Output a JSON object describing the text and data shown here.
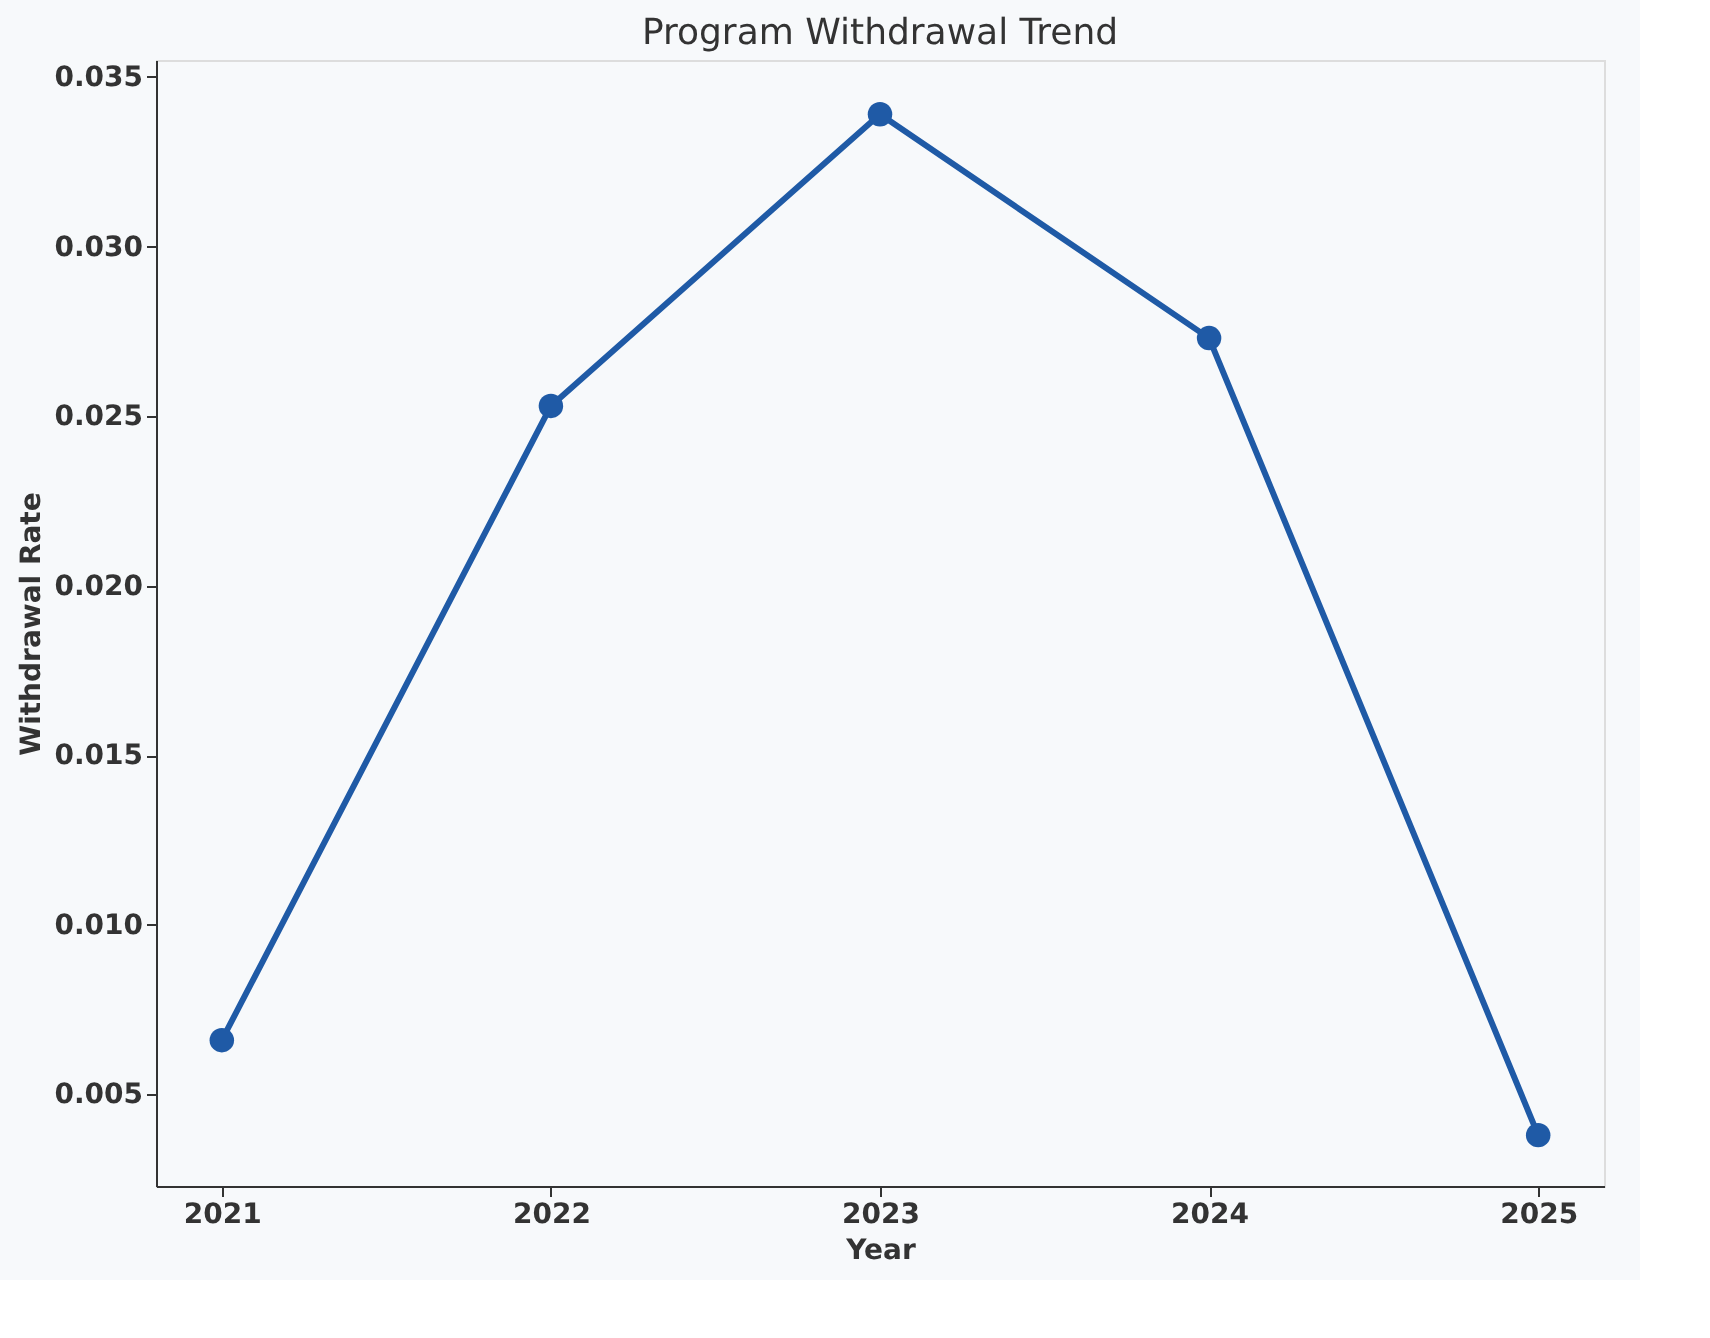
{
  "chart_data": {
    "type": "line",
    "title": "Program Withdrawal Trend",
    "xlabel": "Year",
    "ylabel": "Withdrawal Rate",
    "x": [
      2021,
      2022,
      2023,
      2024,
      2025
    ],
    "series": [
      {
        "color": "#1f5aa6",
        "values": [
          0.0066,
          0.0253,
          0.0339,
          0.0273,
          0.0038
        ]
      }
    ],
    "xlim": [
      2020.8,
      2025.2
    ],
    "xticks": [
      2021,
      2022,
      2023,
      2024,
      2025
    ],
    "ylim": [
      0.0023,
      0.0355
    ],
    "yticks": [
      {
        "value": 0.005,
        "label": "0.005"
      },
      {
        "value": 0.01,
        "label": "0.010"
      },
      {
        "value": 0.015,
        "label": "0.015"
      },
      {
        "value": 0.02,
        "label": "0.020"
      },
      {
        "value": 0.025,
        "label": "0.025"
      },
      {
        "value": 0.03,
        "label": "0.030"
      },
      {
        "value": 0.035,
        "label": "0.035"
      }
    ],
    "grid": false,
    "marker": "circle",
    "line_style": "solid"
  }
}
